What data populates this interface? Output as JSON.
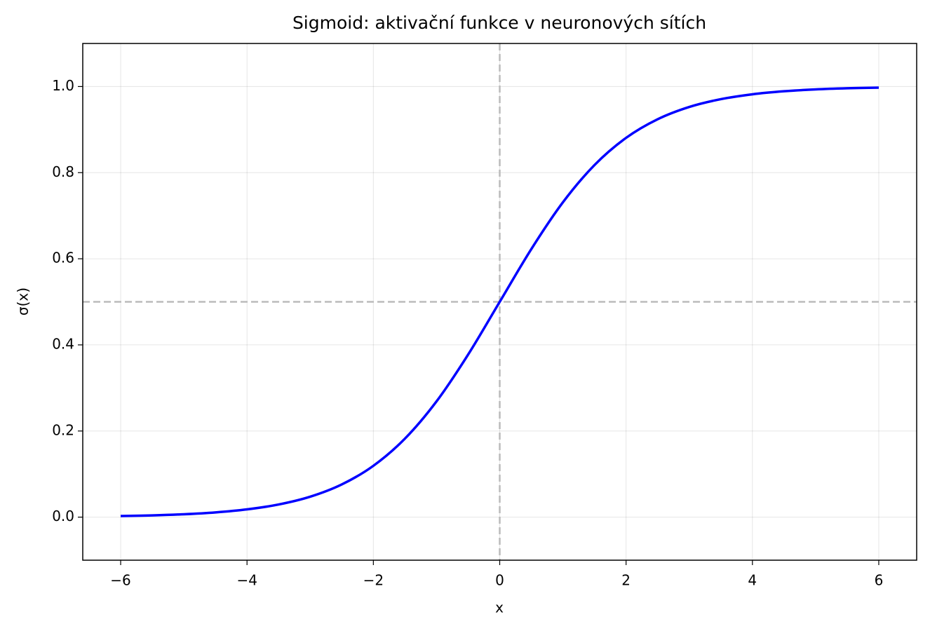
{
  "chart_data": {
    "type": "line",
    "title": "Sigmoid: aktivační funkce v neuronových sítích",
    "xlabel": "x",
    "ylabel": "σ(x)",
    "x": [
      -6,
      -5.5,
      -5,
      -4.5,
      -4,
      -3.5,
      -3,
      -2.5,
      -2,
      -1.5,
      -1,
      -0.5,
      0,
      0.5,
      1,
      1.5,
      2,
      2.5,
      3,
      3.5,
      4,
      4.5,
      5,
      5.5,
      6
    ],
    "values": [
      0.0025,
      0.0041,
      0.0067,
      0.011,
      0.018,
      0.0293,
      0.0474,
      0.0759,
      0.1192,
      0.1824,
      0.2689,
      0.3775,
      0.5,
      0.6225,
      0.7311,
      0.8176,
      0.8808,
      0.9241,
      0.9526,
      0.9707,
      0.982,
      0.989,
      0.9933,
      0.9959,
      0.9975
    ],
    "color": "#0000ff",
    "xlim": [
      -6.6,
      6.6
    ],
    "ylim": [
      -0.1,
      1.1
    ],
    "xticks": [
      {
        "value": -6,
        "label": "−6"
      },
      {
        "value": -4,
        "label": "−4"
      },
      {
        "value": -2,
        "label": "−2"
      },
      0,
      2,
      4,
      6
    ],
    "yticks": [
      {
        "value": 0,
        "label": "0.0"
      },
      0.2,
      0.4,
      0.6,
      0.8,
      {
        "value": 1,
        "label": "1.0"
      }
    ],
    "grid": true,
    "hlines": [
      0.5
    ],
    "vlines": [
      0
    ],
    "ref_color": "#bbbbbb"
  }
}
